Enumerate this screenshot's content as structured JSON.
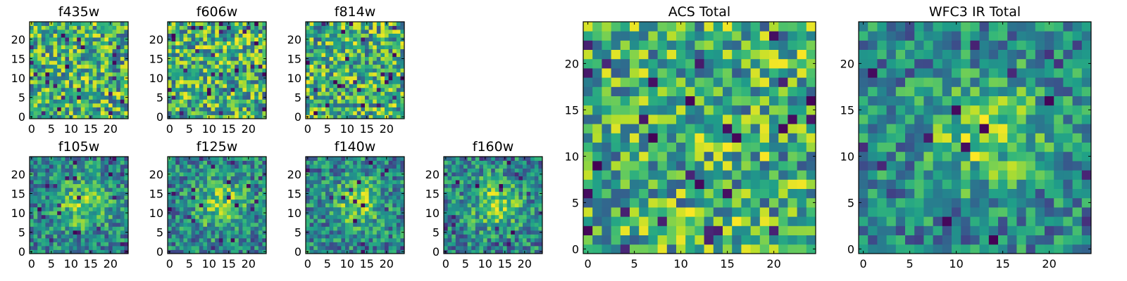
{
  "chart_data": [
    {
      "type": "heatmap",
      "title": "f435w",
      "xticks": [
        "0",
        "5",
        "10",
        "15",
        "20"
      ],
      "yticks": [
        "0",
        "5",
        "10",
        "15",
        "20"
      ],
      "grid_size": 25,
      "colormap": "viridis",
      "intensity_profile": "flat",
      "seed": 11
    },
    {
      "type": "heatmap",
      "title": "f606w",
      "xticks": [
        "0",
        "5",
        "10",
        "15",
        "20"
      ],
      "yticks": [
        "0",
        "5",
        "10",
        "15",
        "20"
      ],
      "grid_size": 25,
      "colormap": "viridis",
      "intensity_profile": "flat",
      "seed": 23
    },
    {
      "type": "heatmap",
      "title": "f814w",
      "xticks": [
        "0",
        "5",
        "10",
        "15",
        "20"
      ],
      "yticks": [
        "0",
        "5",
        "10",
        "15",
        "20"
      ],
      "grid_size": 25,
      "colormap": "viridis",
      "intensity_profile": "flat",
      "seed": 37
    },
    {
      "type": "heatmap",
      "title": "f105w",
      "xticks": [
        "0",
        "5",
        "10",
        "15",
        "20"
      ],
      "yticks": [
        "0",
        "5",
        "10",
        "15",
        "20"
      ],
      "grid_size": 25,
      "colormap": "viridis",
      "intensity_profile": "central-peak",
      "seed": 41
    },
    {
      "type": "heatmap",
      "title": "f125w",
      "xticks": [
        "0",
        "5",
        "10",
        "15",
        "20"
      ],
      "yticks": [
        "0",
        "5",
        "10",
        "15",
        "20"
      ],
      "grid_size": 25,
      "colormap": "viridis",
      "intensity_profile": "central-peak",
      "seed": 53
    },
    {
      "type": "heatmap",
      "title": "f140w",
      "xticks": [
        "0",
        "5",
        "10",
        "15",
        "20"
      ],
      "yticks": [
        "0",
        "5",
        "10",
        "15",
        "20"
      ],
      "grid_size": 25,
      "colormap": "viridis",
      "intensity_profile": "central-peak",
      "seed": 67
    },
    {
      "type": "heatmap",
      "title": "f160w",
      "xticks": [
        "0",
        "5",
        "10",
        "15",
        "20"
      ],
      "yticks": [
        "0",
        "5",
        "10",
        "15",
        "20"
      ],
      "grid_size": 25,
      "colormap": "viridis",
      "intensity_profile": "central-peak",
      "seed": 79
    },
    {
      "type": "heatmap",
      "title": "ACS Total",
      "xticks": [
        "0",
        "5",
        "10",
        "15",
        "20"
      ],
      "yticks": [
        "0",
        "5",
        "10",
        "15",
        "20"
      ],
      "grid_size": 25,
      "colormap": "viridis",
      "intensity_profile": "flat",
      "seed": 97
    },
    {
      "type": "heatmap",
      "title": "WFC3 IR Total",
      "xticks": [
        "0",
        "5",
        "10",
        "15",
        "20"
      ],
      "yticks": [
        "0",
        "5",
        "10",
        "15",
        "20"
      ],
      "grid_size": 25,
      "colormap": "viridis",
      "intensity_profile": "central-peak",
      "seed": 113
    }
  ]
}
